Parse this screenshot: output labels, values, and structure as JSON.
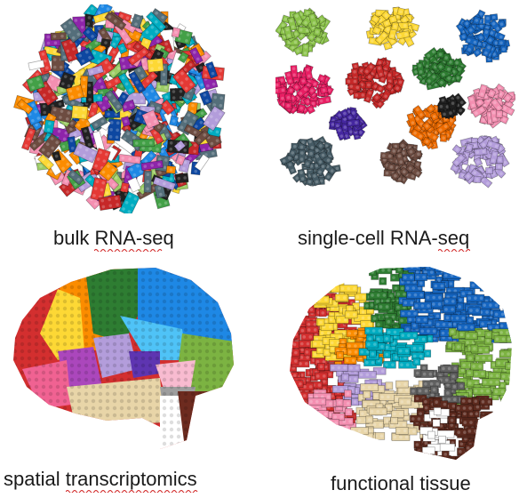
{
  "captions": {
    "bulk": "bulk RNA-seq",
    "bulk_marked": "RNA-seq",
    "single_prefix": "single-cell RNA-",
    "single_marked": "seq",
    "spatial_prefix": "spatial ",
    "spatial_marked": "transcriptomics",
    "functional": "functional tissue"
  },
  "colors": {
    "spellcheck": "#d02020",
    "palette": [
      "#e53935",
      "#1e88e5",
      "#43a047",
      "#fdd835",
      "#fb8c00",
      "#8e24aa",
      "#6d4c41",
      "#212121",
      "#9ccc65",
      "#00acc1",
      "#f48fb1",
      "#b39ddb",
      "#546e7a",
      "#ffffff",
      "#0d47a1",
      "#c62828"
    ]
  },
  "clusters": [
    {
      "color": "#8bc34a"
    },
    {
      "color": "#fdd835"
    },
    {
      "color": "#1565c0"
    },
    {
      "color": "#e91e63"
    },
    {
      "color": "#c62828"
    },
    {
      "color": "#2e7d32"
    },
    {
      "color": "#f48fb1"
    },
    {
      "color": "#ef6c00"
    },
    {
      "color": "#4527a0"
    },
    {
      "color": "#455a64"
    },
    {
      "color": "#6d4c41"
    },
    {
      "color": "#b39ddb"
    },
    {
      "color": "#212121"
    }
  ]
}
